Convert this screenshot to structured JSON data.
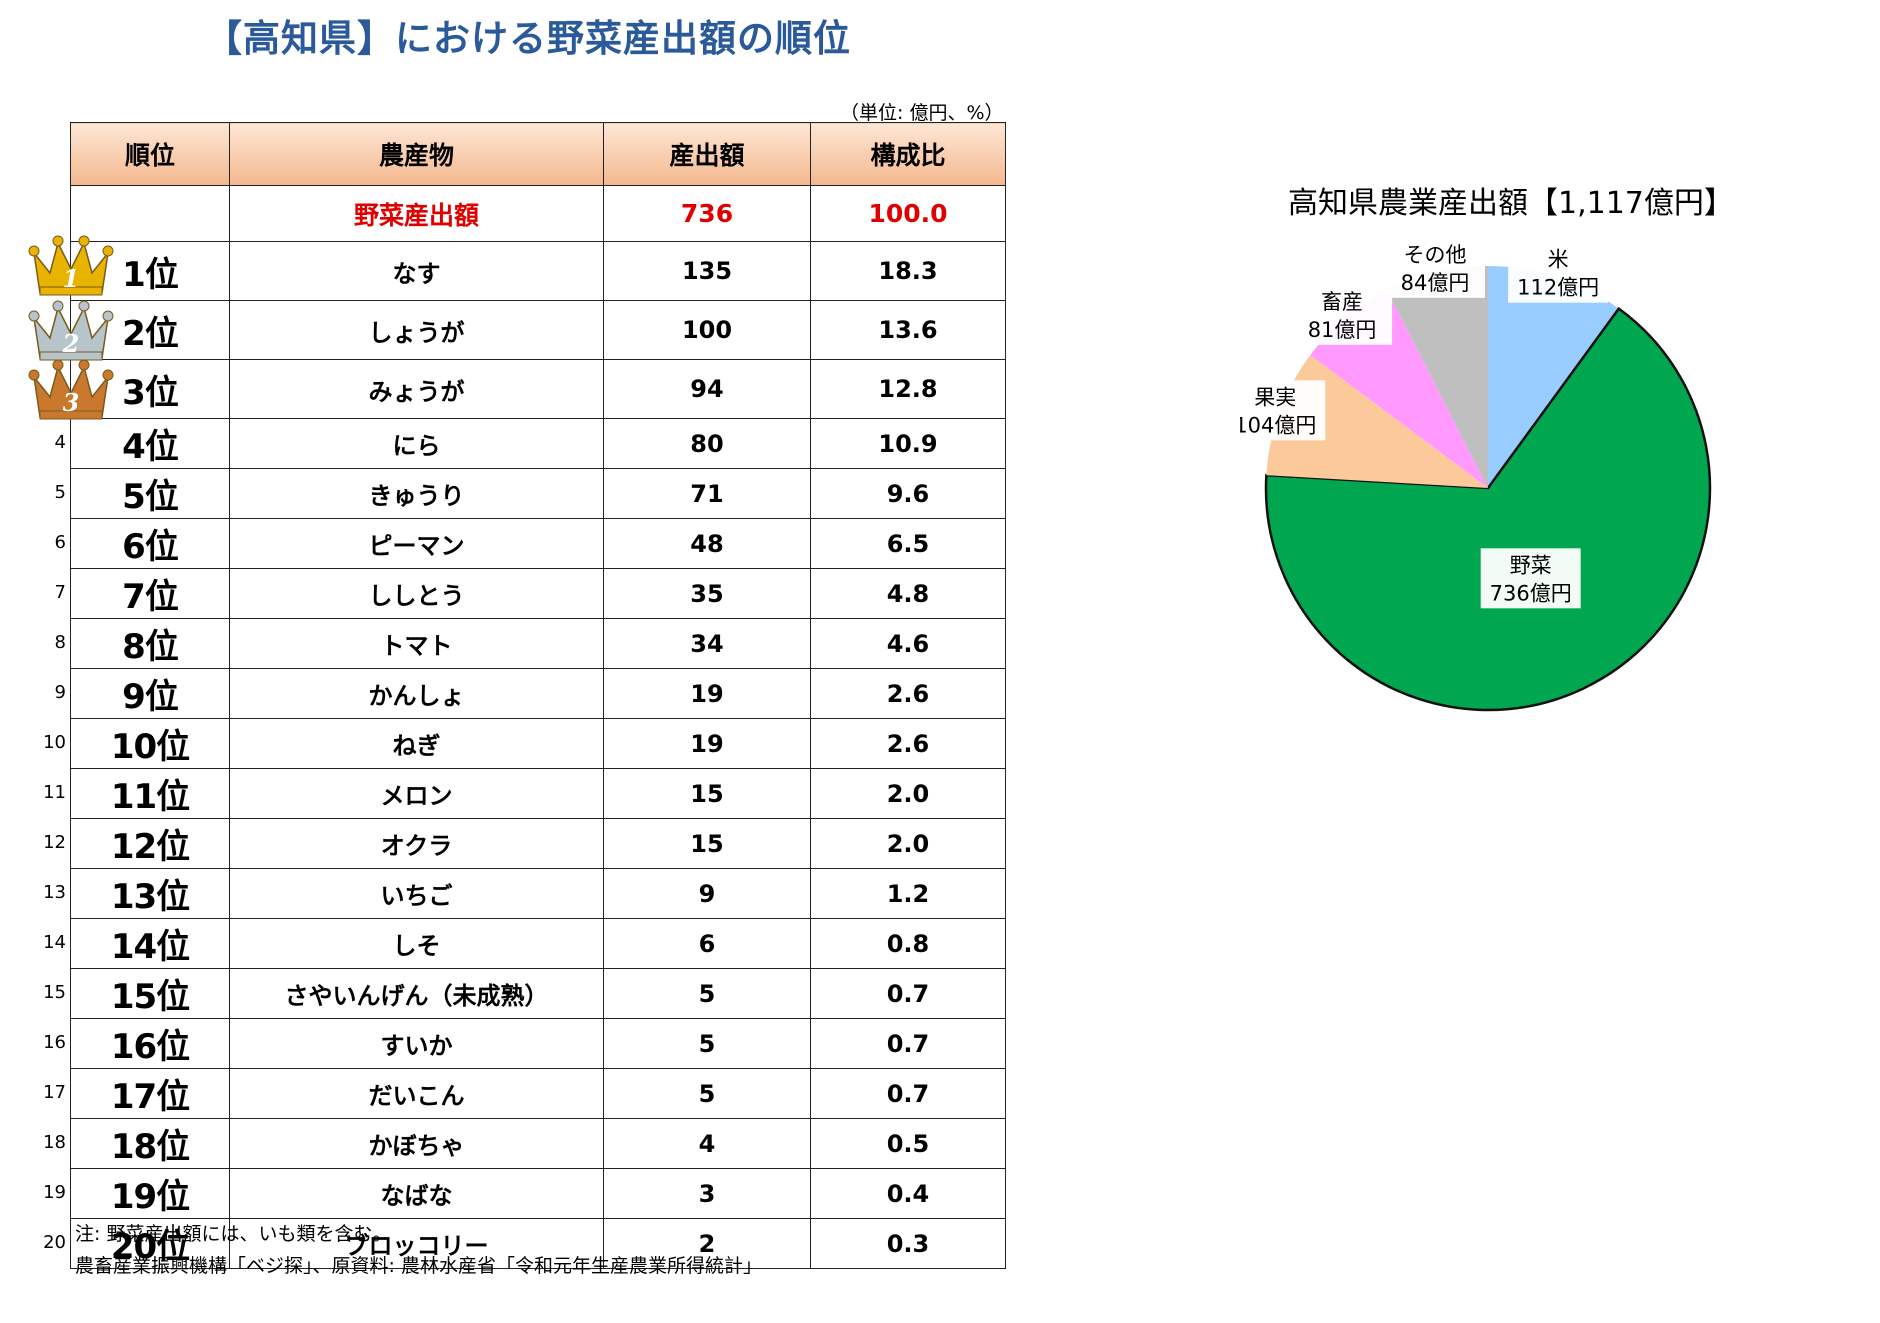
{
  "title": "【高知県】における野菜産出額の順位",
  "unit_note": "（単位: 億円、%）",
  "table": {
    "headers": [
      "順位",
      "農産物",
      "産出額",
      "構成比"
    ],
    "total": {
      "name": "野菜産出額",
      "amount": "736",
      "ratio": "100.0"
    },
    "rows": [
      {
        "num": "",
        "rank": "1位",
        "name": "なす",
        "amount": "135",
        "ratio": "18.3"
      },
      {
        "num": "",
        "rank": "2位",
        "name": "しょうが",
        "amount": "100",
        "ratio": "13.6"
      },
      {
        "num": "",
        "rank": "3位",
        "name": "みょうが",
        "amount": "94",
        "ratio": "12.8"
      },
      {
        "num": "4",
        "rank": "4位",
        "name": "にら",
        "amount": "80",
        "ratio": "10.9"
      },
      {
        "num": "5",
        "rank": "5位",
        "name": "きゅうり",
        "amount": "71",
        "ratio": "9.6"
      },
      {
        "num": "6",
        "rank": "6位",
        "name": "ピーマン",
        "amount": "48",
        "ratio": "6.5"
      },
      {
        "num": "7",
        "rank": "7位",
        "name": "ししとう",
        "amount": "35",
        "ratio": "4.8"
      },
      {
        "num": "8",
        "rank": "8位",
        "name": "トマト",
        "amount": "34",
        "ratio": "4.6"
      },
      {
        "num": "9",
        "rank": "9位",
        "name": "かんしょ",
        "amount": "19",
        "ratio": "2.6"
      },
      {
        "num": "10",
        "rank": "10位",
        "name": "ねぎ",
        "amount": "19",
        "ratio": "2.6"
      },
      {
        "num": "11",
        "rank": "11位",
        "name": "メロン",
        "amount": "15",
        "ratio": "2.0"
      },
      {
        "num": "12",
        "rank": "12位",
        "name": "オクラ",
        "amount": "15",
        "ratio": "2.0"
      },
      {
        "num": "13",
        "rank": "13位",
        "name": "いちご",
        "amount": "9",
        "ratio": "1.2"
      },
      {
        "num": "14",
        "rank": "14位",
        "name": "しそ",
        "amount": "6",
        "ratio": "0.8"
      },
      {
        "num": "15",
        "rank": "15位",
        "name": "さやいんげん（未成熟）",
        "amount": "5",
        "ratio": "0.7"
      },
      {
        "num": "16",
        "rank": "16位",
        "name": "すいか",
        "amount": "5",
        "ratio": "0.7"
      },
      {
        "num": "17",
        "rank": "17位",
        "name": "だいこん",
        "amount": "5",
        "ratio": "0.7"
      },
      {
        "num": "18",
        "rank": "18位",
        "name": "かぼちゃ",
        "amount": "4",
        "ratio": "0.5"
      },
      {
        "num": "19",
        "rank": "19位",
        "name": "なばな",
        "amount": "3",
        "ratio": "0.4"
      },
      {
        "num": "20",
        "rank": "20位",
        "name": "ブロッコリー",
        "amount": "2",
        "ratio": "0.3"
      }
    ]
  },
  "crowns": [
    {
      "label": "1",
      "color": "#e8b400"
    },
    {
      "label": "2",
      "color": "#b8c4cc"
    },
    {
      "label": "3",
      "color": "#c9782e"
    }
  ],
  "notes": {
    "note1": "注: 野菜産出額には、いも類を含む。",
    "note2": "農畜産業振興機構「ベジ探」、原資料: 農林水産省「令和元年生産農業所得統計」"
  },
  "chart_data": {
    "type": "pie",
    "title": "高知県農業産出額【1,117億円】",
    "unit": "億円",
    "slices": [
      {
        "name": "米",
        "value": 112,
        "label_line1": "米",
        "label_line2": "112億円",
        "color": "#99ccff"
      },
      {
        "name": "野菜",
        "value": 736,
        "label_line1": "野菜",
        "label_line2": "736億円",
        "color": "#00a650"
      },
      {
        "name": "果実",
        "value": 104,
        "label_line1": "果実",
        "label_line2": "104億円",
        "color": "#fcc99b"
      },
      {
        "name": "畜産",
        "value": 81,
        "label_line1": "畜産",
        "label_line2": "81億円",
        "color": "#ff99ff"
      },
      {
        "name": "その他",
        "value": 84,
        "label_line1": "その他",
        "label_line2": "84億円",
        "color": "#bfbfbf"
      }
    ]
  }
}
